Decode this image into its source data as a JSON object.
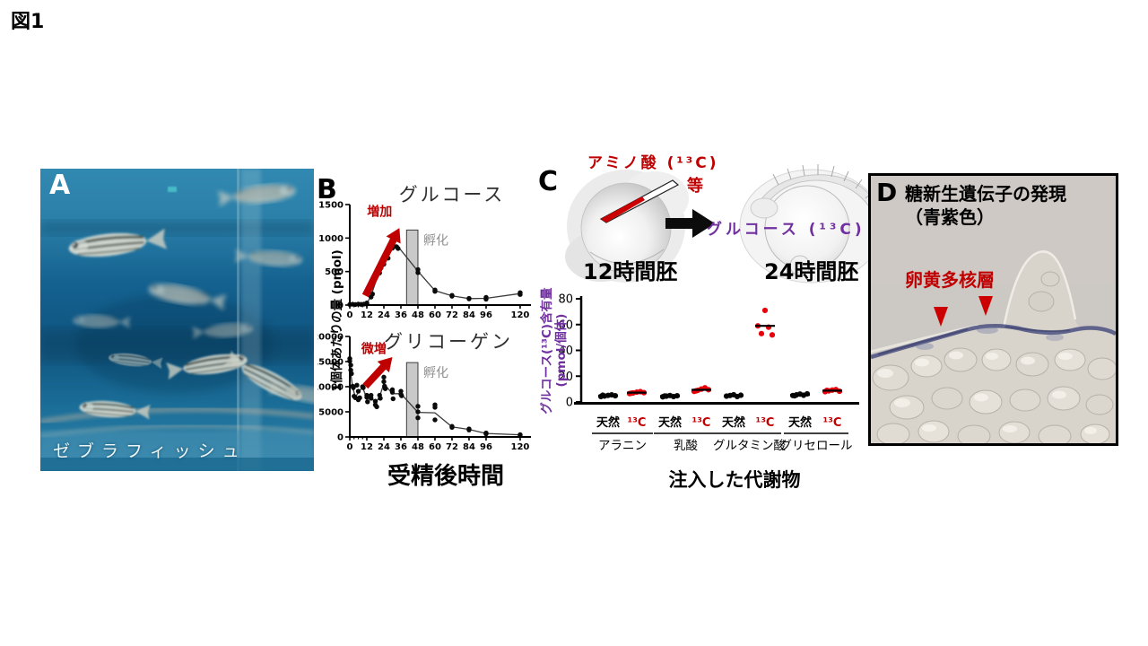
{
  "figure_title": "図1",
  "colors": {
    "accent_red": "#c00000",
    "dot_red": "#e8000b",
    "purple": "#7030a0",
    "band_gray": "#c9c9c9",
    "hatch_text_gray": "#8f8f8f"
  },
  "panelA": {
    "label": "A",
    "caption": "ゼブラフィッシュ"
  },
  "panelB": {
    "label": "B",
    "ylabel": "1個体あたりの量 (pmol)"
  },
  "panelC": {
    "label": "C",
    "injection_label": "アミノ酸 (¹³C)",
    "injection_label_2": "等",
    "product_label": "グルコース (¹³C)",
    "embryo12_label": "12時間胚",
    "embryo24_label": "24時間胚"
  },
  "panelD": {
    "label": "D",
    "title_line1": "糖新生遺伝子の発現",
    "title_line2": "（青紫色）",
    "annotation": "卵黄多核層"
  },
  "chart_data": [
    {
      "id": "chart-glucose",
      "type": "scatter-line",
      "title": "グルコース",
      "ylim": [
        0,
        1500
      ],
      "yticks": [
        0,
        500,
        1000,
        1500
      ],
      "xticks": [
        0,
        12,
        24,
        36,
        48,
        60,
        72,
        84,
        96,
        120
      ],
      "minor_xticks": [
        3,
        6,
        9
      ],
      "band": {
        "x0": 40,
        "x1": 48,
        "top": 1120,
        "label": "孵化"
      },
      "arrow": {
        "label": "増加",
        "from": [
          11,
          140
        ],
        "to": [
          35,
          1150
        ],
        "label_at": [
          21,
          1330
        ]
      },
      "points": [
        [
          0,
          8
        ],
        [
          2,
          12
        ],
        [
          4,
          8
        ],
        [
          6,
          14
        ],
        [
          8,
          10
        ],
        [
          10,
          14
        ],
        [
          12,
          16
        ],
        [
          12,
          30
        ],
        [
          15,
          120
        ],
        [
          16,
          165
        ],
        [
          21,
          480
        ],
        [
          22,
          555
        ],
        [
          24,
          610
        ],
        [
          27,
          700
        ],
        [
          28,
          820
        ],
        [
          29,
          860
        ],
        [
          30,
          850
        ],
        [
          31,
          880
        ],
        [
          33,
          990
        ],
        [
          33,
          870
        ],
        [
          34,
          845
        ],
        [
          48,
          530
        ],
        [
          48,
          485
        ],
        [
          60,
          225
        ],
        [
          60,
          205
        ],
        [
          72,
          145
        ],
        [
          72,
          132
        ],
        [
          84,
          100
        ],
        [
          84,
          93
        ],
        [
          96,
          115
        ],
        [
          96,
          88
        ],
        [
          120,
          185
        ],
        [
          120,
          158
        ]
      ],
      "mean_line": [
        [
          0,
          9
        ],
        [
          6,
          10
        ],
        [
          12,
          22
        ],
        [
          15,
          140
        ],
        [
          21,
          515
        ],
        [
          24,
          610
        ],
        [
          27,
          760
        ],
        [
          30,
          865
        ],
        [
          33,
          900
        ],
        [
          48,
          505
        ],
        [
          60,
          215
        ],
        [
          72,
          138
        ],
        [
          84,
          97
        ],
        [
          96,
          101
        ],
        [
          120,
          171
        ]
      ]
    },
    {
      "id": "chart-glycogen",
      "type": "scatter-line",
      "title": "グリコーゲン",
      "xlabel": "受精後時間",
      "ylim": [
        0,
        20000
      ],
      "yticks": [
        0,
        5000,
        10000,
        15000,
        20000
      ],
      "xticks": [
        0,
        12,
        24,
        36,
        48,
        60,
        72,
        84,
        96,
        120
      ],
      "minor_xticks": [
        3,
        6,
        9
      ],
      "band": {
        "x0": 40,
        "x1": 48,
        "top": 14800,
        "label": "孵化"
      },
      "arrow": {
        "label": "微増",
        "from": [
          11,
          10100
        ],
        "to": [
          30,
          15900
        ],
        "label_at": [
          17,
          16700
        ]
      },
      "points": [
        [
          0,
          15600
        ],
        [
          0,
          15100
        ],
        [
          0.7,
          14300
        ],
        [
          0.7,
          13300
        ],
        [
          1.2,
          12600
        ],
        [
          2,
          10100
        ],
        [
          2.5,
          9800
        ],
        [
          3,
          8100
        ],
        [
          4,
          7800
        ],
        [
          5,
          10300
        ],
        [
          6,
          9100
        ],
        [
          6,
          7400
        ],
        [
          7,
          7800
        ],
        [
          9,
          10000
        ],
        [
          9.5,
          9800
        ],
        [
          12,
          8300
        ],
        [
          12,
          7900
        ],
        [
          12.5,
          7000
        ],
        [
          15,
          8300
        ],
        [
          15,
          7700
        ],
        [
          18,
          7100
        ],
        [
          18,
          6400
        ],
        [
          19,
          6000
        ],
        [
          21,
          8300
        ],
        [
          21.5,
          7700
        ],
        [
          24,
          11900
        ],
        [
          24,
          11000
        ],
        [
          24.5,
          10100
        ],
        [
          25,
          9600
        ],
        [
          30,
          9400
        ],
        [
          30,
          8900
        ],
        [
          30.5,
          7600
        ],
        [
          36,
          9100
        ],
        [
          36,
          8500
        ],
        [
          36.5,
          8200
        ],
        [
          48,
          6100
        ],
        [
          48,
          5000
        ],
        [
          48,
          3800
        ],
        [
          60,
          6400
        ],
        [
          60,
          5900
        ],
        [
          60,
          3400
        ],
        [
          72,
          2100
        ],
        [
          72,
          1900
        ],
        [
          84,
          1600
        ],
        [
          84,
          1400
        ],
        [
          96,
          800
        ],
        [
          96,
          600
        ],
        [
          120,
          450
        ],
        [
          120,
          350
        ]
      ],
      "mean_line": [
        [
          0,
          14000
        ],
        [
          2,
          9900
        ],
        [
          4,
          7900
        ],
        [
          6,
          8900
        ],
        [
          9,
          9900
        ],
        [
          12,
          7700
        ],
        [
          15,
          8000
        ],
        [
          18,
          6700
        ],
        [
          21,
          8000
        ],
        [
          24,
          10600
        ],
        [
          30,
          8600
        ],
        [
          36,
          8600
        ],
        [
          48,
          4900
        ],
        [
          60,
          4800
        ],
        [
          72,
          2000
        ],
        [
          84,
          1500
        ],
        [
          96,
          700
        ],
        [
          120,
          420
        ]
      ]
    },
    {
      "id": "chart-c13",
      "type": "grouped-scatter",
      "ylabel_line1": "グルコース(¹³C)含有量",
      "ylabel_line2": "(pmol/個体)",
      "xlabel": "注入した代謝物",
      "ylim": [
        0,
        80
      ],
      "yticks": [
        0,
        20,
        40,
        60,
        80
      ],
      "groups": [
        {
          "metabolite": "アラニン",
          "sub": [
            {
              "label": "天然",
              "label_color": "#000000",
              "color": "#0a0a0a",
              "values": [
                4.2,
                4.6,
                5.1,
                5.5,
                4.8,
                5.2
              ],
              "mean": 4.9
            },
            {
              "label": "¹³C",
              "label_color": "#c00000",
              "color": "#e8000b",
              "values": [
                6.5,
                7,
                7.6,
                8,
                7.2,
                6.8
              ],
              "mean": 7.2
            }
          ]
        },
        {
          "metabolite": "乳酸",
          "sub": [
            {
              "label": "天然",
              "label_color": "#000000",
              "color": "#0a0a0a",
              "values": [
                4,
                4.5,
                5,
                4.2,
                4.8,
                4.6
              ],
              "mean": 4.5
            },
            {
              "label": "¹³C",
              "label_color": "#c00000",
              "color": "#e8000b",
              "values": [
                8.2,
                9,
                10,
                11,
                9.5,
                8.6
              ],
              "mean": 9.4
            }
          ]
        },
        {
          "metabolite": "グルタミン酸",
          "sub": [
            {
              "label": "天然",
              "label_color": "#000000",
              "color": "#0a0a0a",
              "values": [
                4.5,
                5,
                5.6,
                4.2,
                5.2
              ],
              "mean": 4.9
            },
            {
              "label": "¹³C",
              "label_color": "#c00000",
              "color": "#e8000b",
              "values": [
                59,
                53,
                71,
                58,
                52
              ],
              "mean": 59
            }
          ]
        },
        {
          "metabolite": "グリセロール",
          "sub": [
            {
              "label": "天然",
              "label_color": "#000000",
              "color": "#0a0a0a",
              "values": [
                5,
                5.5,
                6.1,
                5.2,
                6.3,
                4.8
              ],
              "mean": 5.5
            },
            {
              "label": "¹³C",
              "label_color": "#c00000",
              "color": "#e8000b",
              "values": [
                8,
                8.6,
                9.2,
                9.6,
                8.3,
                9
              ],
              "mean": 8.8
            }
          ]
        }
      ]
    }
  ]
}
